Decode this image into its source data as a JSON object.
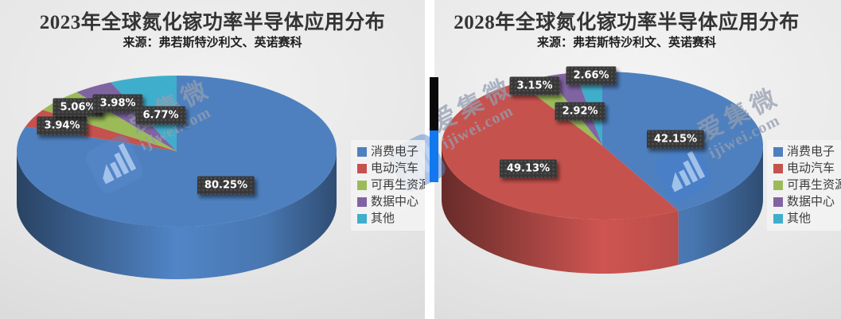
{
  "chart_data": [
    {
      "type": "pie",
      "style": "3d",
      "title": "2023年全球氮化镓功率半导体应用分布",
      "source": "来源：弗若斯特沙利文、英诺赛科",
      "categories": [
        "消费电子",
        "电动汽车",
        "可再生资源",
        "数据中心",
        "其他"
      ],
      "values": [
        80.25,
        3.94,
        5.06,
        3.98,
        6.77
      ],
      "labels": [
        "80.25%",
        "3.94%",
        "5.06%",
        "3.98%",
        "6.77%"
      ],
      "colors": [
        "#4E80BF",
        "#C6524E",
        "#9BBB59",
        "#8064A2",
        "#3FAECC"
      ],
      "legend_position": "right",
      "start_angle_deg": 0,
      "clockwise": true
    },
    {
      "type": "pie",
      "style": "3d",
      "title": "2028年全球氮化镓功率半导体应用分布",
      "source": "来源：弗若斯特沙利文、英诺赛科",
      "categories": [
        "消费电子",
        "电动汽车",
        "可再生资源",
        "数据中心",
        "其他"
      ],
      "values": [
        42.15,
        49.13,
        3.15,
        2.92,
        2.66
      ],
      "labels": [
        "42.15%",
        "49.13%",
        "3.15%",
        "2.92%",
        "2.66%"
      ],
      "colors": [
        "#4E80BF",
        "#C6524E",
        "#9BBB59",
        "#8064A2",
        "#3FAECC"
      ],
      "legend_position": "right",
      "start_angle_deg": 0,
      "clockwise": true
    }
  ],
  "watermark": {
    "brand": "爱集微",
    "site": "ijiwei.com",
    "logo_color": "#3b74c8"
  },
  "divider": {
    "bar_top_color": "#0a0a0a",
    "bar_bottom_color": "#1278ef"
  },
  "label_chip": {
    "background": "#383838",
    "text_color": "#ffffff"
  }
}
